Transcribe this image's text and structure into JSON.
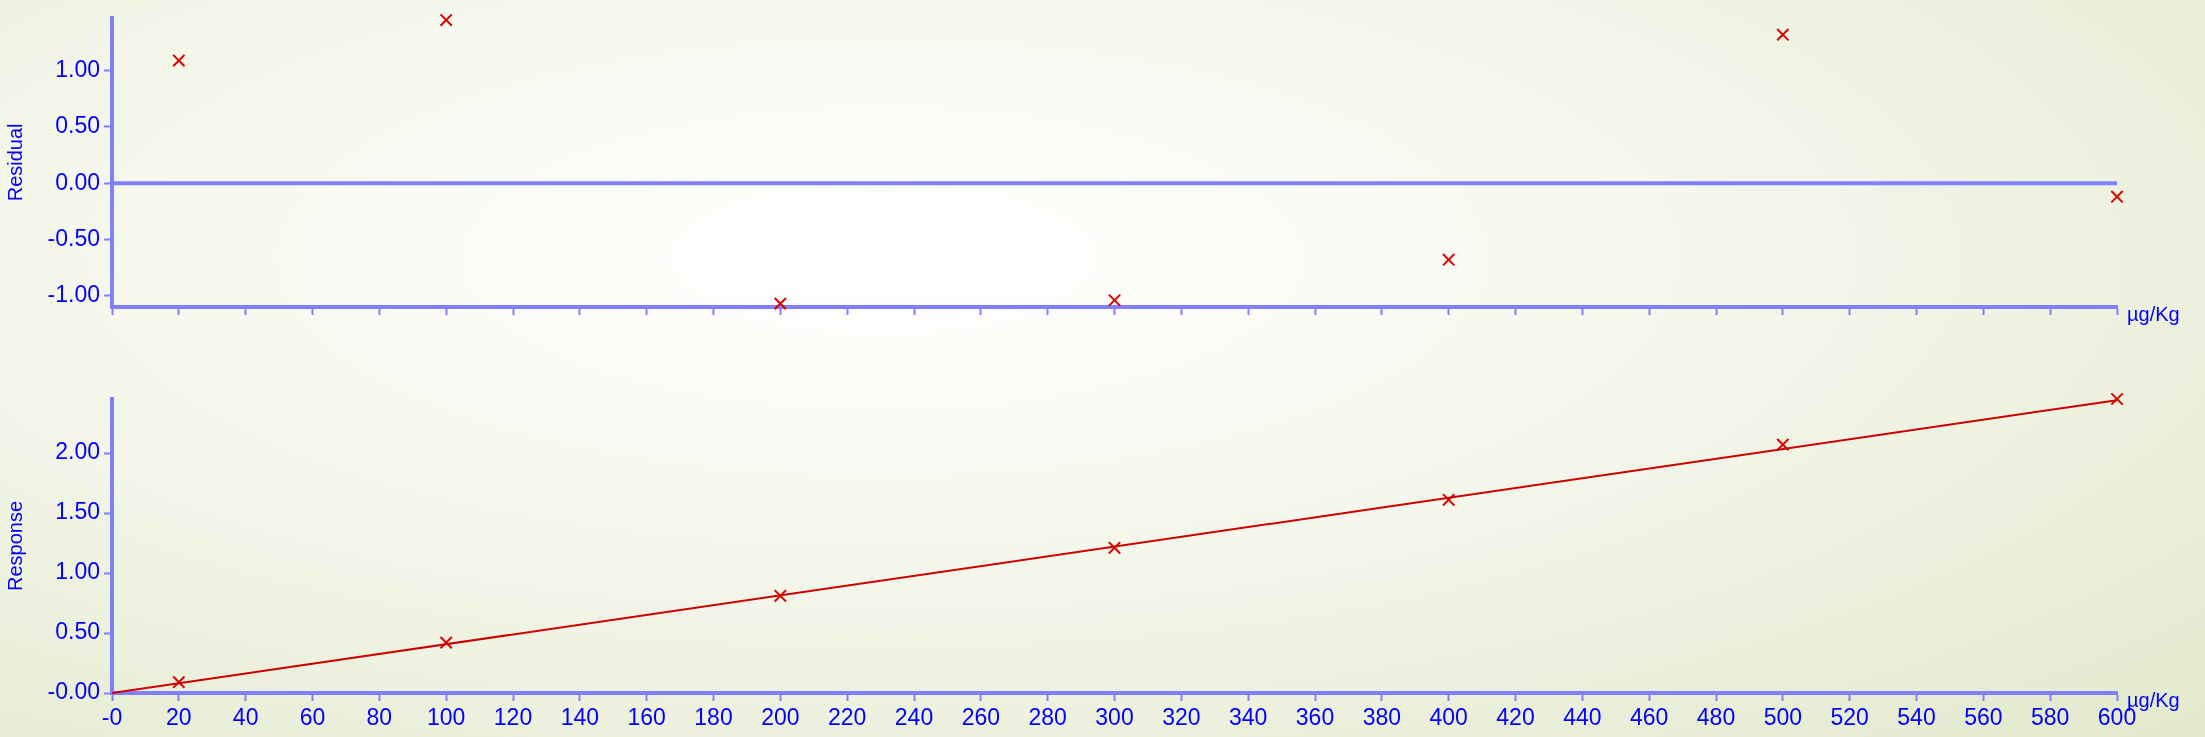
{
  "chart_data": [
    {
      "type": "scatter",
      "ylabel": "Residual",
      "xlabel": "µg/Kg",
      "x": [
        20,
        100,
        200,
        300,
        400,
        500,
        600
      ],
      "values": [
        1.09,
        1.45,
        -1.07,
        -1.04,
        -0.68,
        1.32,
        -0.12
      ],
      "color": "#dd0000",
      "marker": "cross",
      "xlim": [
        0,
        600
      ],
      "xticks": [
        0,
        20,
        40,
        60,
        80,
        100,
        120,
        140,
        160,
        180,
        200,
        220,
        240,
        260,
        280,
        300,
        320,
        340,
        360,
        380,
        400,
        420,
        440,
        460,
        480,
        500,
        520,
        540,
        560,
        580,
        600
      ],
      "ylim": [
        -1.1,
        1.47
      ],
      "yticks": [
        {
          "value": -1,
          "label": "-1.00"
        },
        {
          "value": -0.5,
          "label": "-0.50"
        },
        {
          "value": 0,
          "label": "0.00"
        },
        {
          "value": 0.5,
          "label": "0.50"
        },
        {
          "value": 1,
          "label": "1.00"
        }
      ],
      "ref_lines": [
        {
          "axis": "y",
          "value": 0,
          "color": "#8080ff"
        }
      ],
      "tick_labels": "y",
      "grid": false,
      "legend": false
    },
    {
      "type": "scatter",
      "ylabel": "Response",
      "xlabel": "µg/Kg",
      "xlim": [
        0,
        600
      ],
      "xticks": [
        {
          "value": 0,
          "label": "-0"
        },
        20,
        40,
        60,
        80,
        100,
        120,
        140,
        160,
        180,
        200,
        220,
        240,
        260,
        280,
        300,
        320,
        340,
        360,
        380,
        400,
        420,
        440,
        460,
        480,
        500,
        520,
        540,
        560,
        580,
        600
      ],
      "ylim": [
        0,
        2.45
      ],
      "yticks": [
        {
          "value": 0,
          "label": "-0.00"
        },
        {
          "value": 0.5,
          "label": "0.50"
        },
        {
          "value": 1,
          "label": "1.00"
        },
        {
          "value": 1.5,
          "label": "1.50"
        },
        {
          "value": 2,
          "label": "2.00"
        }
      ],
      "series": [
        {
          "type": "line",
          "color": "#cc0000",
          "x": [
            0,
            600
          ],
          "values": [
            0,
            2.44
          ],
          "marker": "none"
        },
        {
          "color": "#dd0000",
          "x": [
            20,
            100,
            200,
            300,
            400,
            500,
            600
          ],
          "values": [
            0.09,
            0.42,
            0.81,
            1.21,
            1.61,
            2.07,
            2.45
          ],
          "marker": "cross"
        }
      ],
      "grid": false,
      "legend": false
    }
  ]
}
